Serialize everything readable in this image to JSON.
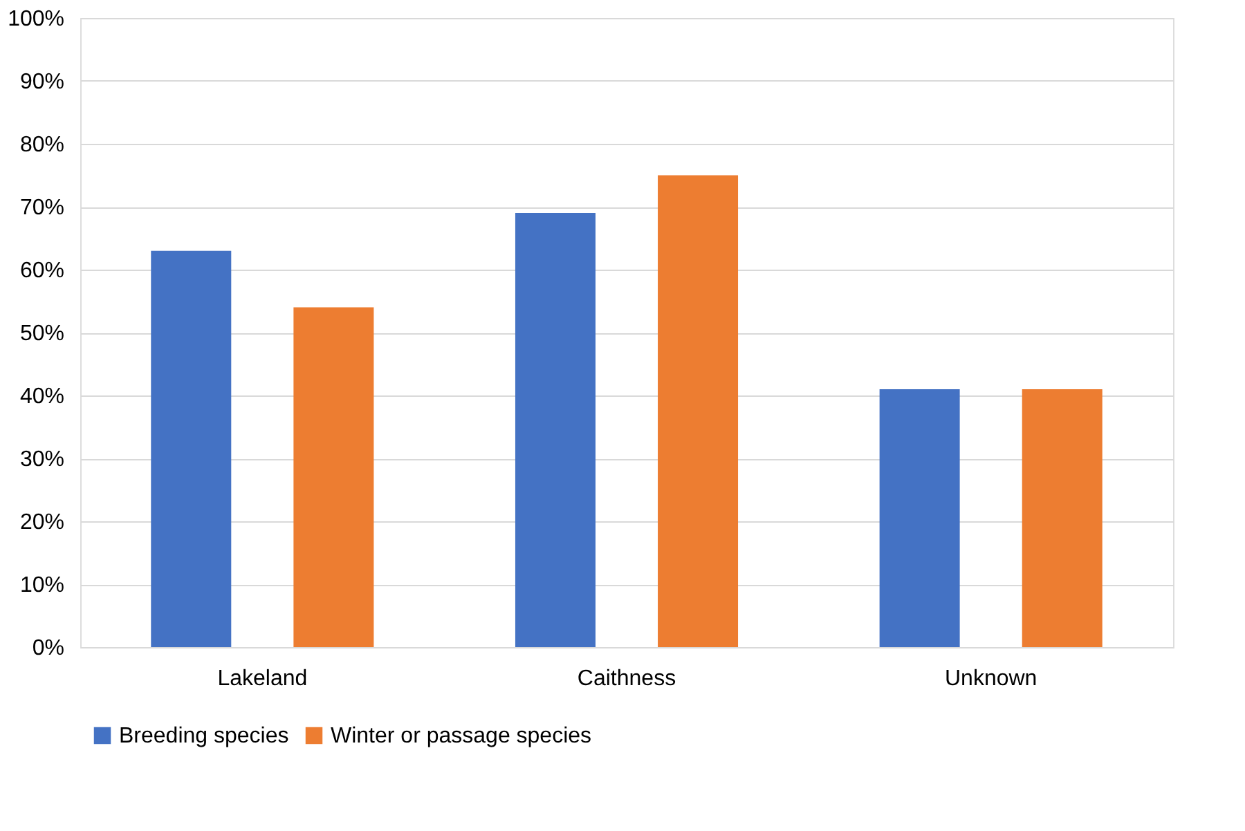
{
  "chart_data": {
    "type": "bar",
    "categories": [
      "Lakeland",
      "Caithness",
      "Unknown"
    ],
    "series": [
      {
        "name": "Breeding species",
        "color": "#4472c4",
        "values": [
          63,
          69,
          41
        ]
      },
      {
        "name": "Winter or passage species",
        "color": "#ed7d31",
        "values": [
          54,
          75,
          41
        ]
      }
    ],
    "ylim": [
      0,
      100
    ],
    "yticks": [
      {
        "value": 0,
        "label": "0%"
      },
      {
        "value": 10,
        "label": "10%"
      },
      {
        "value": 20,
        "label": "20%"
      },
      {
        "value": 30,
        "label": "30%"
      },
      {
        "value": 40,
        "label": "40%"
      },
      {
        "value": 50,
        "label": "50%"
      },
      {
        "value": 60,
        "label": "60%"
      },
      {
        "value": 70,
        "label": "70%"
      },
      {
        "value": 80,
        "label": "80%"
      },
      {
        "value": 90,
        "label": "90%"
      },
      {
        "value": 100,
        "label": "100%"
      }
    ],
    "grid": "y",
    "legend": "bottom"
  }
}
